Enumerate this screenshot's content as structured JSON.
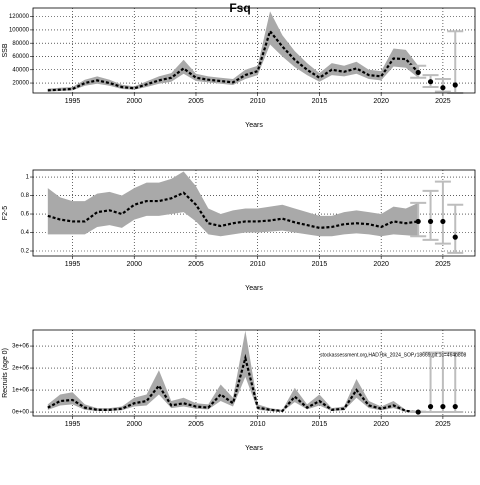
{
  "chart_data": [
    {
      "type": "line",
      "title": "Fsq",
      "xlabel": "Years",
      "ylabel": "SSB",
      "xlim": [
        1991.8,
        2027.6
      ],
      "ylim": [
        5000,
        133000
      ],
      "xticks": [
        1995,
        2000,
        2005,
        2010,
        2015,
        2020,
        2025
      ],
      "yticks": [
        20000,
        40000,
        60000,
        80000,
        100000,
        120000
      ],
      "grid": true,
      "x": [
        1993,
        1994,
        1995,
        1996,
        1997,
        1998,
        1999,
        2000,
        2001,
        2002,
        2003,
        2004,
        2005,
        2006,
        2007,
        2008,
        2009,
        2010,
        2011,
        2012,
        2013,
        2014,
        2015,
        2016,
        2017,
        2018,
        2019,
        2020,
        2021,
        2022,
        2023
      ],
      "values": [
        9000,
        10000,
        11000,
        20000,
        24000,
        20000,
        14000,
        12000,
        18000,
        24000,
        28000,
        42000,
        28000,
        25000,
        23000,
        21000,
        32000,
        38000,
        98000,
        75000,
        55000,
        40000,
        28000,
        40000,
        37000,
        42000,
        32000,
        30000,
        57000,
        56000,
        36000
      ],
      "lower": [
        7000,
        8000,
        9000,
        16000,
        19000,
        16000,
        11000,
        10000,
        14000,
        19000,
        22000,
        34000,
        23000,
        21000,
        19000,
        17000,
        26000,
        32000,
        78000,
        60000,
        44000,
        32000,
        22000,
        32000,
        30000,
        34000,
        26000,
        24000,
        45000,
        43000,
        28000
      ],
      "upper": [
        11500,
        13000,
        14000,
        25000,
        30000,
        25000,
        17500,
        15000,
        22500,
        30000,
        35000,
        55000,
        34000,
        30000,
        28000,
        26000,
        40000,
        46000,
        128000,
        92000,
        68000,
        50000,
        35000,
        50000,
        46000,
        52000,
        40000,
        38000,
        72000,
        70000,
        46000
      ],
      "projection": {
        "x": [
          2023,
          2024,
          2025,
          2026
        ],
        "values": [
          36000,
          22000,
          13000,
          17000
        ],
        "lower": [
          28000,
          14000,
          7000,
          5000
        ],
        "upper": [
          46000,
          32000,
          26000,
          98000
        ]
      },
      "colors": {
        "line": "#000000",
        "band": "#a9a9a9",
        "bar": "#bdbdbd"
      }
    },
    {
      "type": "line",
      "xlabel": "Years",
      "ylabel": "F2-5",
      "xlim": [
        1991.8,
        2027.6
      ],
      "ylim": [
        0.146,
        1.076
      ],
      "xticks": [
        1995,
        2000,
        2005,
        2010,
        2015,
        2020,
        2025
      ],
      "yticks": [
        0.2,
        0.4,
        0.6,
        0.8,
        1.0
      ],
      "grid": true,
      "x": [
        1993,
        1994,
        1995,
        1996,
        1997,
        1998,
        1999,
        2000,
        2001,
        2002,
        2003,
        2004,
        2005,
        2006,
        2007,
        2008,
        2009,
        2010,
        2011,
        2012,
        2013,
        2014,
        2015,
        2016,
        2017,
        2018,
        2019,
        2020,
        2021,
        2022,
        2023
      ],
      "values": [
        0.58,
        0.54,
        0.52,
        0.52,
        0.62,
        0.64,
        0.6,
        0.7,
        0.74,
        0.74,
        0.77,
        0.83,
        0.7,
        0.5,
        0.47,
        0.5,
        0.52,
        0.52,
        0.53,
        0.55,
        0.51,
        0.48,
        0.45,
        0.46,
        0.49,
        0.5,
        0.49,
        0.46,
        0.52,
        0.5,
        0.52
      ],
      "lower": [
        0.38,
        0.38,
        0.38,
        0.38,
        0.46,
        0.48,
        0.45,
        0.54,
        0.58,
        0.58,
        0.6,
        0.62,
        0.52,
        0.38,
        0.36,
        0.38,
        0.4,
        0.4,
        0.41,
        0.42,
        0.4,
        0.38,
        0.36,
        0.36,
        0.38,
        0.39,
        0.38,
        0.36,
        0.38,
        0.37,
        0.36
      ],
      "upper": [
        0.88,
        0.78,
        0.74,
        0.74,
        0.82,
        0.84,
        0.8,
        0.88,
        0.94,
        0.94,
        0.98,
        1.06,
        0.9,
        0.66,
        0.6,
        0.64,
        0.66,
        0.66,
        0.68,
        0.7,
        0.66,
        0.62,
        0.58,
        0.58,
        0.62,
        0.64,
        0.62,
        0.6,
        0.68,
        0.66,
        0.72
      ],
      "projection": {
        "x": [
          2023,
          2024,
          2025,
          2026
        ],
        "values": [
          0.52,
          0.52,
          0.52,
          0.35
        ],
        "lower": [
          0.36,
          0.32,
          0.28,
          0.18
        ],
        "upper": [
          0.72,
          0.85,
          0.95,
          0.7
        ]
      },
      "colors": {
        "line": "#000000",
        "band": "#a9a9a9",
        "bar": "#bdbdbd"
      }
    },
    {
      "type": "line",
      "xlabel": "Years",
      "ylabel": "Recruits (age 0)",
      "annotation": "stockassessment.org,HAD7bk_2024_SOP,r18669,git:1c=464b808",
      "xlim": [
        1991.8,
        2027.6
      ],
      "ylim": [
        -180000,
        3730000
      ],
      "xticks": [
        1995,
        2000,
        2005,
        2010,
        2015,
        2020,
        2025
      ],
      "yticks": [
        {
          "value": 0,
          "label": "0e+00"
        },
        {
          "value": 1000000,
          "label": "1e+06"
        },
        {
          "value": 2000000,
          "label": "2e+06"
        },
        {
          "value": 3000000,
          "label": "3e+06"
        }
      ],
      "grid": true,
      "x": [
        1993,
        1994,
        1995,
        1996,
        1997,
        1998,
        1999,
        2000,
        2001,
        2002,
        2003,
        2004,
        2005,
        2006,
        2007,
        2008,
        2009,
        2010,
        2011,
        2012,
        2013,
        2014,
        2015,
        2016,
        2017,
        2018,
        2019,
        2020,
        2021,
        2022,
        2023
      ],
      "values": [
        200000,
        500000,
        550000,
        200000,
        100000,
        100000,
        150000,
        400000,
        500000,
        1200000,
        300000,
        400000,
        250000,
        200000,
        800000,
        400000,
        2450000,
        200000,
        100000,
        50000,
        700000,
        200000,
        500000,
        100000,
        150000,
        1000000,
        300000,
        150000,
        300000,
        50000,
        0
      ],
      "lower": [
        100000,
        300000,
        350000,
        100000,
        50000,
        50000,
        80000,
        250000,
        300000,
        800000,
        180000,
        250000,
        150000,
        120000,
        500000,
        250000,
        1600000,
        100000,
        50000,
        20000,
        450000,
        120000,
        300000,
        50000,
        80000,
        650000,
        180000,
        80000,
        180000,
        20000,
        0
      ],
      "upper": [
        350000,
        800000,
        900000,
        350000,
        180000,
        180000,
        250000,
        650000,
        800000,
        1900000,
        500000,
        650000,
        400000,
        350000,
        1250000,
        650000,
        3700000,
        350000,
        180000,
        100000,
        1100000,
        350000,
        800000,
        180000,
        250000,
        1500000,
        500000,
        250000,
        500000,
        100000,
        20000
      ],
      "projection": {
        "x": [
          2023,
          2024,
          2025,
          2026
        ],
        "values": [
          0,
          250000,
          250000,
          250000
        ],
        "lower": [
          0,
          0,
          0,
          0
        ],
        "upper": [
          20000,
          2700000,
          2700000,
          2700000
        ]
      },
      "colors": {
        "line": "#000000",
        "band": "#a9a9a9",
        "bar": "#bdbdbd"
      }
    }
  ]
}
